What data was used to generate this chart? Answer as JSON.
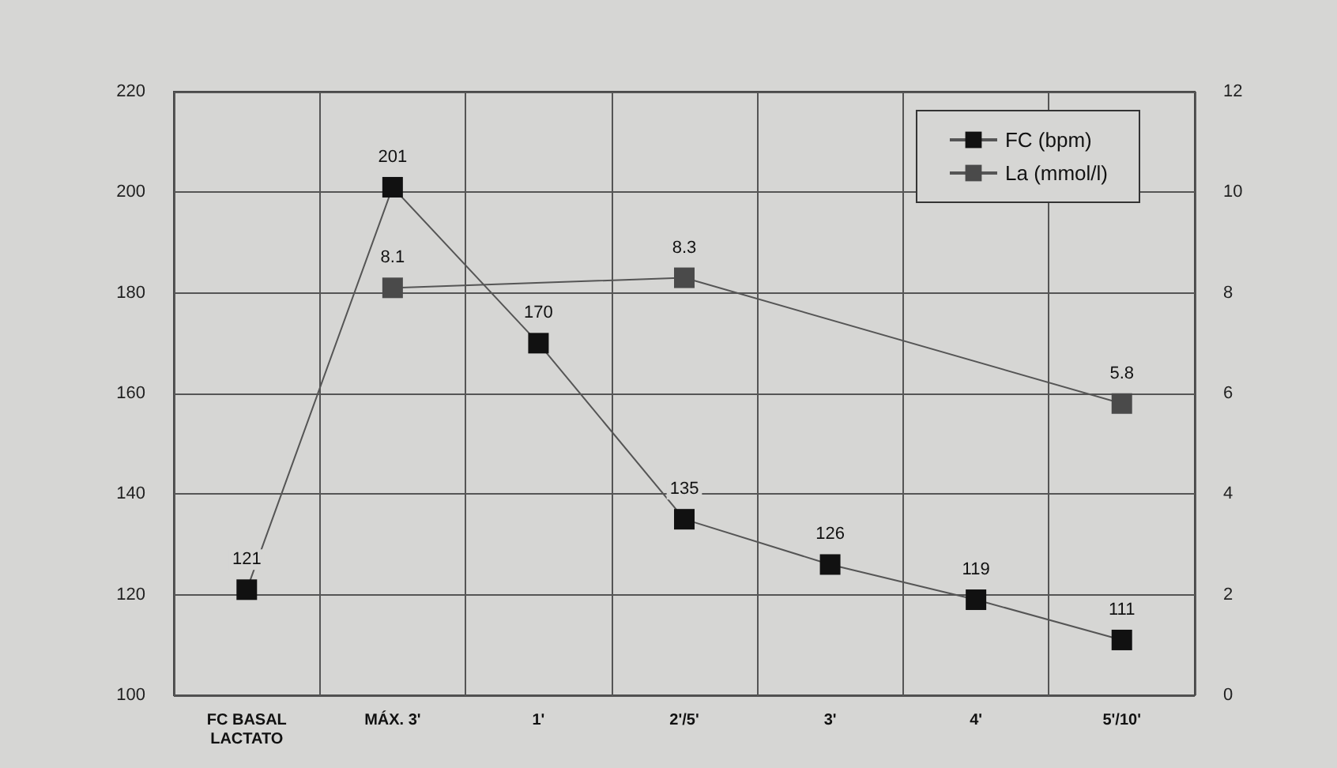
{
  "chart_data": {
    "type": "line",
    "categories": [
      "FC BASAL\nLACTATO",
      "MÁX. 3'",
      "1'",
      "2'/5'",
      "3'",
      "4'",
      "5'/10'"
    ],
    "series": [
      {
        "name": "FC (bpm)",
        "color": "#111111",
        "values": [
          121,
          201,
          170,
          135,
          126,
          119,
          111
        ]
      },
      {
        "name": "La (mmol/l)",
        "color": "#4a4a4a",
        "axis": "y2",
        "values": [
          null,
          8.1,
          null,
          8.3,
          null,
          null,
          5.8
        ]
      }
    ],
    "ylim": [
      100,
      220
    ],
    "yticks": [
      100,
      120,
      140,
      160,
      180,
      200,
      220
    ],
    "y2lim": [
      0,
      12
    ],
    "y2ticks": [
      0,
      2,
      4,
      6,
      8,
      10,
      12
    ],
    "grid": true,
    "legend": "top right",
    "marker": "square",
    "line_style": "solid",
    "data_labels": true
  }
}
